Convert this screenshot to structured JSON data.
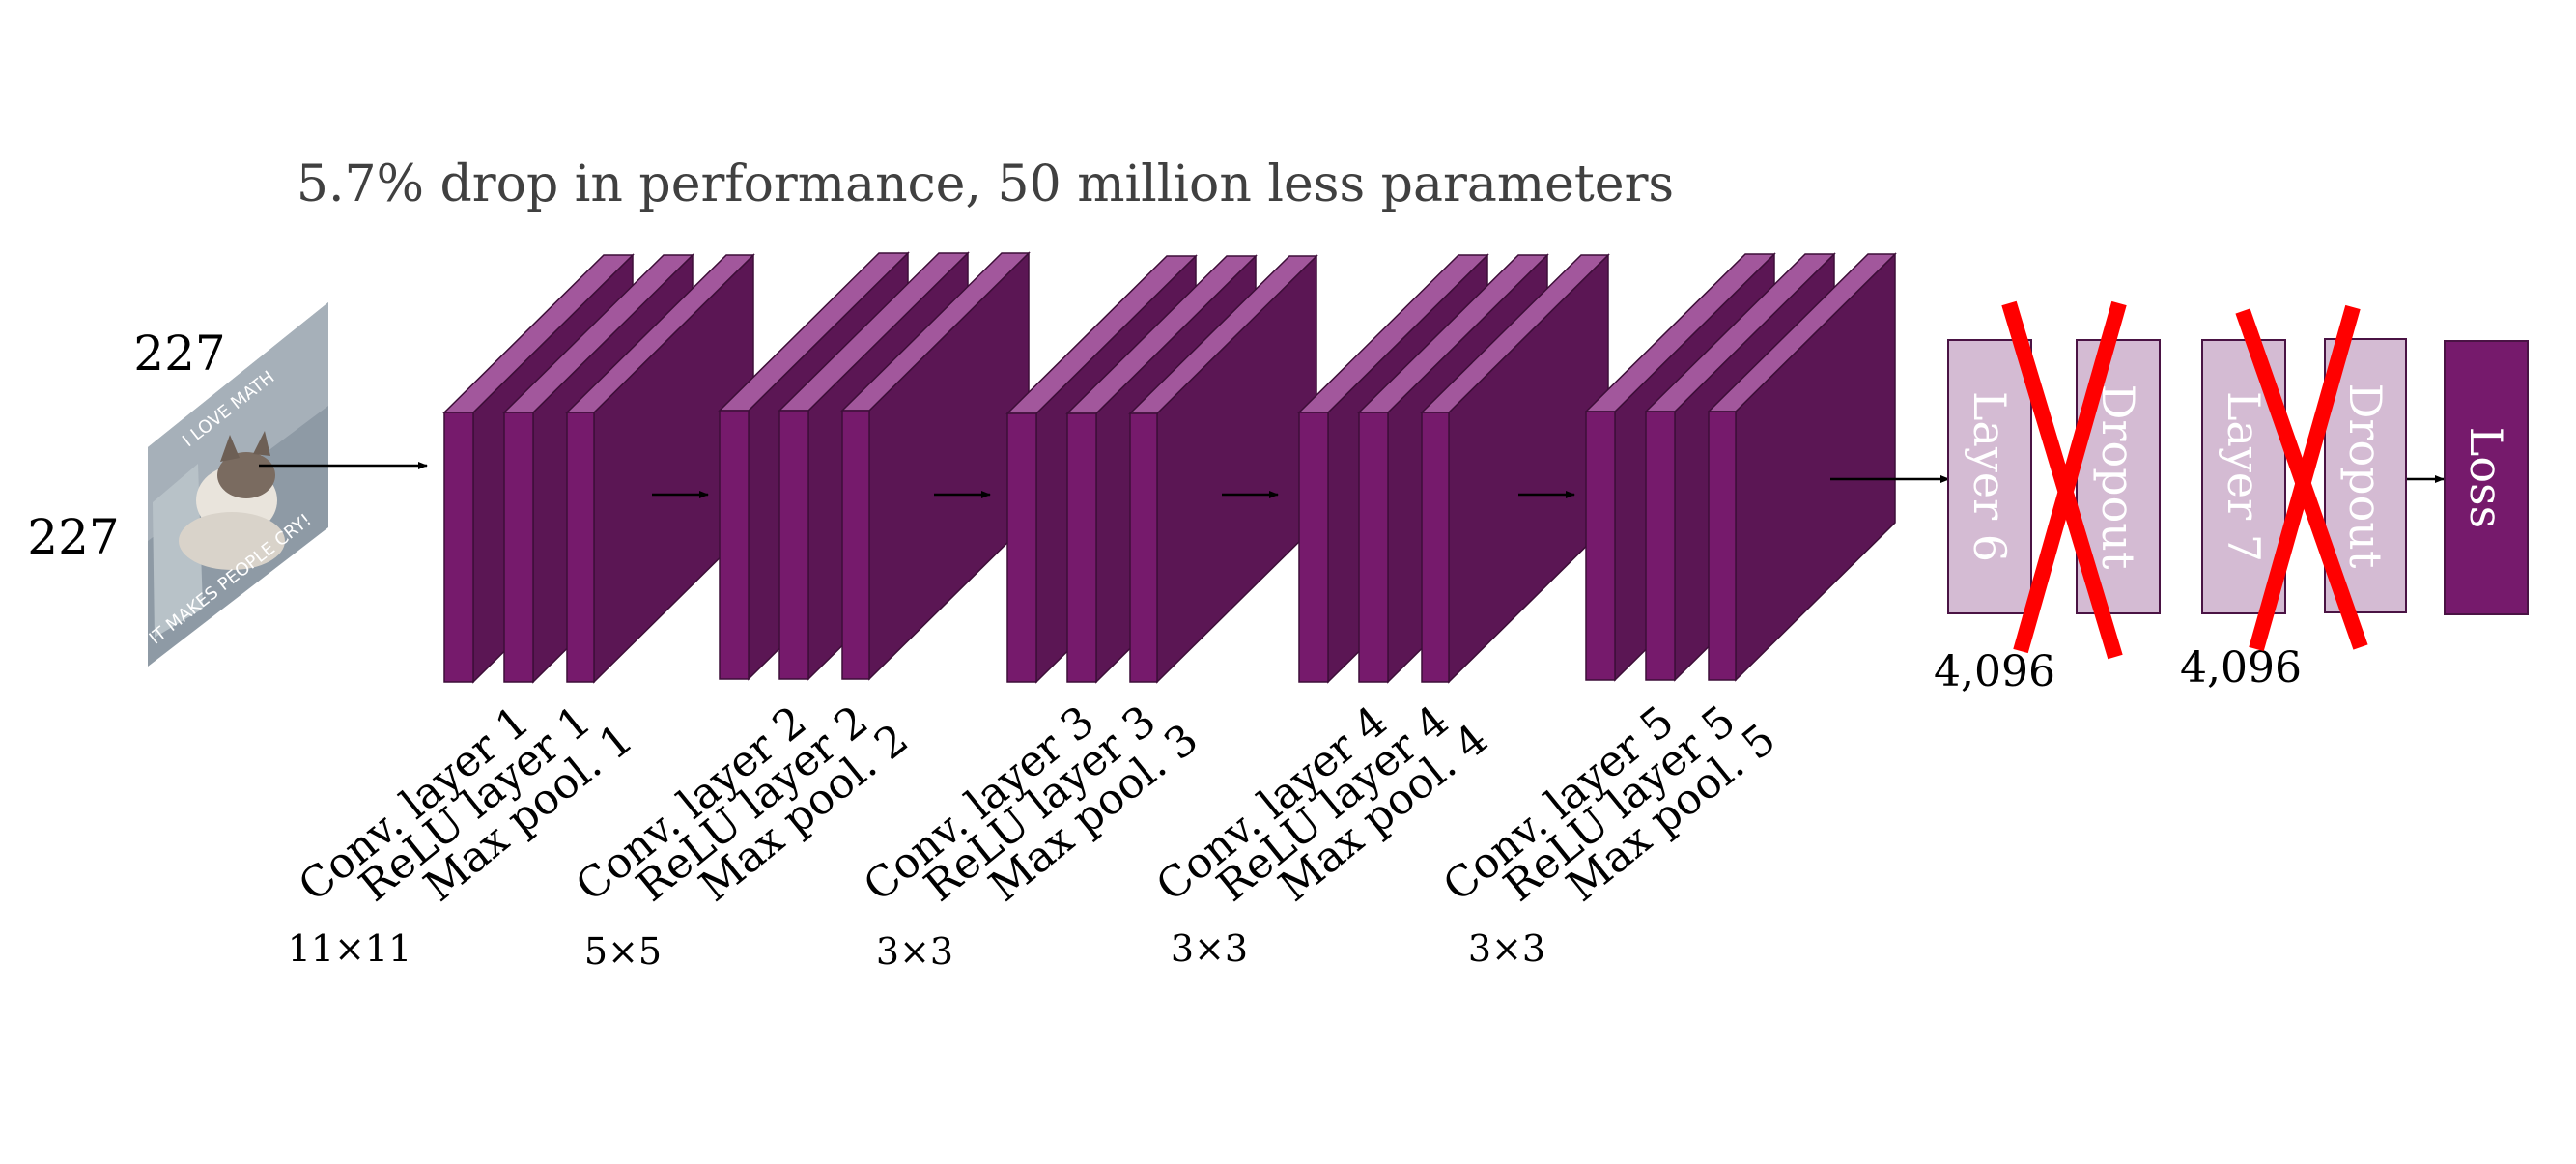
{
  "caption": "5.7% drop in performance, 50 million less parameters",
  "input": {
    "width_label": "227",
    "height_label": "227",
    "meme_top": "I LOVE MATH",
    "meme_bottom": "IT MAKES PEOPLE CRY!"
  },
  "conv_blocks": [
    {
      "labels": [
        "Conv. layer 1",
        "ReLU layer 1",
        "Max pool. 1"
      ],
      "kernel": "11×11"
    },
    {
      "labels": [
        "Conv. layer 2",
        "ReLU layer 2",
        "Max pool. 2"
      ],
      "kernel": "5×5"
    },
    {
      "labels": [
        "Conv. layer 3",
        "ReLU layer 3",
        "Max pool. 3"
      ],
      "kernel": "3×3"
    },
    {
      "labels": [
        "Conv. layer 4",
        "ReLU layer 4",
        "Max pool. 4"
      ],
      "kernel": "3×3"
    },
    {
      "labels": [
        "Conv. layer 5",
        "ReLU layer 5",
        "Max pool. 5"
      ],
      "kernel": "3×3"
    }
  ],
  "fc_layers": [
    {
      "label": "Layer 6",
      "removed": true
    },
    {
      "label": "Dropout",
      "removed": true
    },
    {
      "label": "Layer 7",
      "removed": true
    },
    {
      "label": "Dropout",
      "removed": true
    },
    {
      "label": "Loss",
      "removed": false
    }
  ],
  "fc_counts": [
    "4,096",
    "4,096"
  ],
  "colors": {
    "front": "#761a6c",
    "side": "#5b1654",
    "top": "#a2579c",
    "faded": "#d4bbd3",
    "cross": "#ff0000",
    "caption": "#404040"
  }
}
